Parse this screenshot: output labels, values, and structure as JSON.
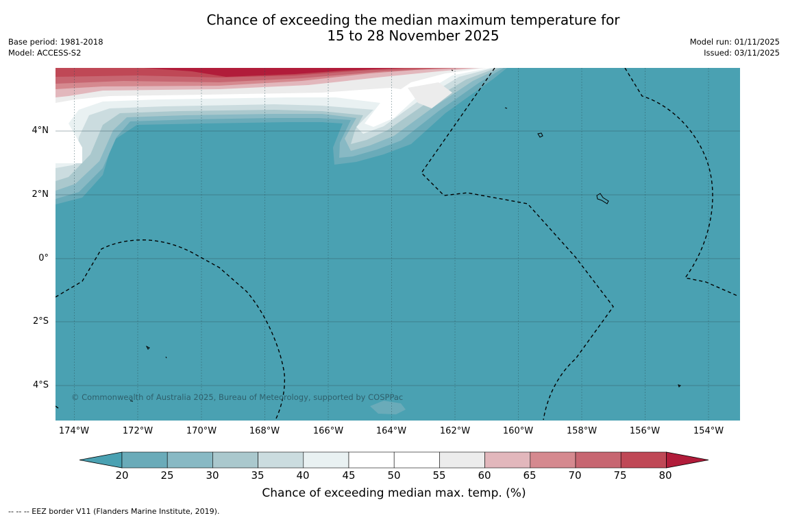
{
  "title_line1": "Chance of exceeding the median maximum temperature for",
  "title_line2": "15 to 28 November 2025",
  "meta_left": {
    "base_period": "Base period: 1981-2018",
    "model": "Model: ACCESS-S2"
  },
  "meta_right": {
    "model_run": "Model run: 01/11/2025",
    "issued": "Issued: 03/11/2025"
  },
  "map": {
    "ocean_color": "#4aa1b2",
    "lat_labels": [
      "4°N",
      "2°N",
      "0°",
      "2°S",
      "4°S"
    ],
    "lon_labels": [
      "174°W",
      "172°W",
      "170°W",
      "168°W",
      "166°W",
      "164°W",
      "162°W",
      "160°W",
      "158°W",
      "156°W",
      "154°W"
    ],
    "copyright": "© Commonwealth of Australia 2025, Bureau of Meteorology, supported by COSPPac"
  },
  "colorbar": {
    "ticks": [
      "20",
      "25",
      "30",
      "35",
      "40",
      "45",
      "50",
      "55",
      "60",
      "65",
      "70",
      "75",
      "80"
    ],
    "colors": [
      "#4aa1b2",
      "#6aabb9",
      "#88b9c4",
      "#aac8cd",
      "#cbdcdf",
      "#e9f1f2",
      "#ffffff",
      "#ffffff",
      "#ececec",
      "#e2b7bc",
      "#d5898f",
      "#c76671",
      "#bf4856",
      "#b11c3a"
    ],
    "label": "Chance of exceeding median max. temp. (%)"
  },
  "footnote": "--  --  -- EEZ border V11 (Flanders Marine Institute, 2019)."
}
